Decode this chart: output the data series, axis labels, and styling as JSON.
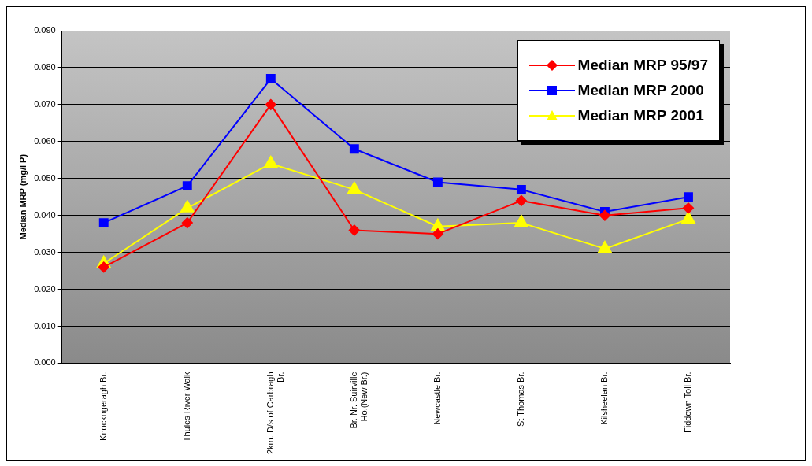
{
  "chart_data": {
    "type": "line",
    "ylabel": "Median MRP (mg/l P)",
    "categories": [
      "Knockngeragh Br.",
      "Thules River Walk",
      "2km. D/s of Carbragh Br.",
      "Br. Nr. Suirville Ho.(New Br.)",
      "Newcastle Br.",
      "St Thomas Br.",
      "Kilsheelan Br.",
      "Fiddown Toll Br."
    ],
    "series": [
      {
        "name": "Median MRP 95/97",
        "color": "#ff0000",
        "marker": "diamond",
        "values": [
          0.026,
          0.038,
          0.07,
          0.036,
          0.035,
          0.044,
          0.04,
          0.042
        ]
      },
      {
        "name": "Median MRP 2000",
        "color": "#0000ff",
        "marker": "square",
        "values": [
          0.038,
          0.048,
          0.077,
          0.058,
          0.049,
          0.047,
          0.041,
          0.045
        ]
      },
      {
        "name": "Median MRP 2001",
        "color": "#ffff00",
        "marker": "triangle",
        "values": [
          0.027,
          0.042,
          0.054,
          0.047,
          0.037,
          0.038,
          0.031,
          0.039
        ]
      }
    ],
    "ylim": [
      0,
      0.09
    ],
    "yticks": [
      {
        "value": 0,
        "label": "0.000"
      },
      {
        "value": 0.01,
        "label": "0.010"
      },
      {
        "value": 0.02,
        "label": "0.020"
      },
      {
        "value": 0.03,
        "label": "0.030"
      },
      {
        "value": 0.04,
        "label": "0.040"
      },
      {
        "value": 0.05,
        "label": "0.050"
      },
      {
        "value": 0.06,
        "label": "0.060"
      },
      {
        "value": 0.07,
        "label": "0.070"
      },
      {
        "value": 0.08,
        "label": "0.080"
      },
      {
        "value": 0.09,
        "label": "0.090"
      }
    ],
    "grid": "y",
    "legend": "top right"
  }
}
